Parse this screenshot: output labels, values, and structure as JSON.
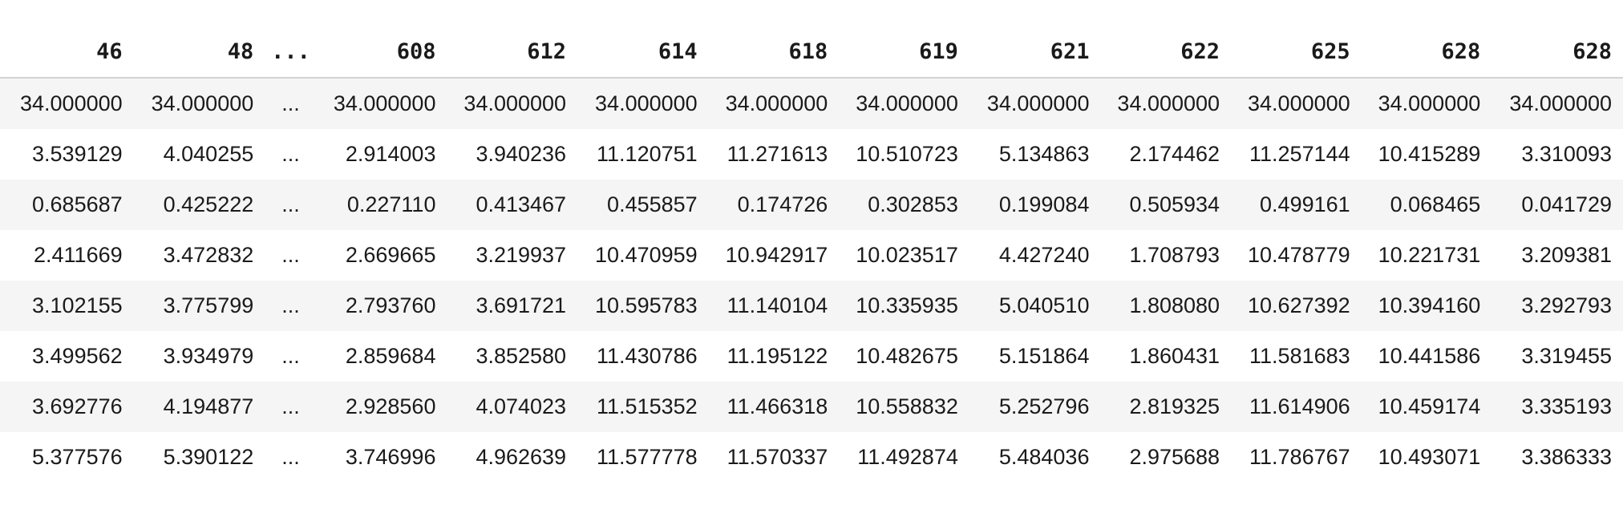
{
  "table": {
    "columns": [
      "46",
      "48",
      "...",
      "608",
      "612",
      "614",
      "618",
      "619",
      "621",
      "622",
      "625",
      "628",
      "628"
    ],
    "rows": [
      [
        "34.000000",
        "34.000000",
        "...",
        "34.000000",
        "34.000000",
        "34.000000",
        "34.000000",
        "34.000000",
        "34.000000",
        "34.000000",
        "34.000000",
        "34.000000",
        "34.000000"
      ],
      [
        "3.539129",
        "4.040255",
        "...",
        "2.914003",
        "3.940236",
        "11.120751",
        "11.271613",
        "10.510723",
        "5.134863",
        "2.174462",
        "11.257144",
        "10.415289",
        "3.310093"
      ],
      [
        "0.685687",
        "0.425222",
        "...",
        "0.227110",
        "0.413467",
        "0.455857",
        "0.174726",
        "0.302853",
        "0.199084",
        "0.505934",
        "0.499161",
        "0.068465",
        "0.041729"
      ],
      [
        "2.411669",
        "3.472832",
        "...",
        "2.669665",
        "3.219937",
        "10.470959",
        "10.942917",
        "10.023517",
        "4.427240",
        "1.708793",
        "10.478779",
        "10.221731",
        "3.209381"
      ],
      [
        "3.102155",
        "3.775799",
        "...",
        "2.793760",
        "3.691721",
        "10.595783",
        "11.140104",
        "10.335935",
        "5.040510",
        "1.808080",
        "10.627392",
        "10.394160",
        "3.292793"
      ],
      [
        "3.499562",
        "3.934979",
        "...",
        "2.859684",
        "3.852580",
        "11.430786",
        "11.195122",
        "10.482675",
        "5.151864",
        "1.860431",
        "11.581683",
        "10.441586",
        "3.319455"
      ],
      [
        "3.692776",
        "4.194877",
        "...",
        "2.928560",
        "4.074023",
        "11.515352",
        "11.466318",
        "10.558832",
        "5.252796",
        "2.819325",
        "11.614906",
        "10.459174",
        "3.335193"
      ],
      [
        "5.377576",
        "5.390122",
        "...",
        "3.746996",
        "4.962639",
        "11.577778",
        "11.570337",
        "11.492874",
        "5.484036",
        "2.975688",
        "11.786767",
        "10.493071",
        "3.386333"
      ]
    ]
  }
}
